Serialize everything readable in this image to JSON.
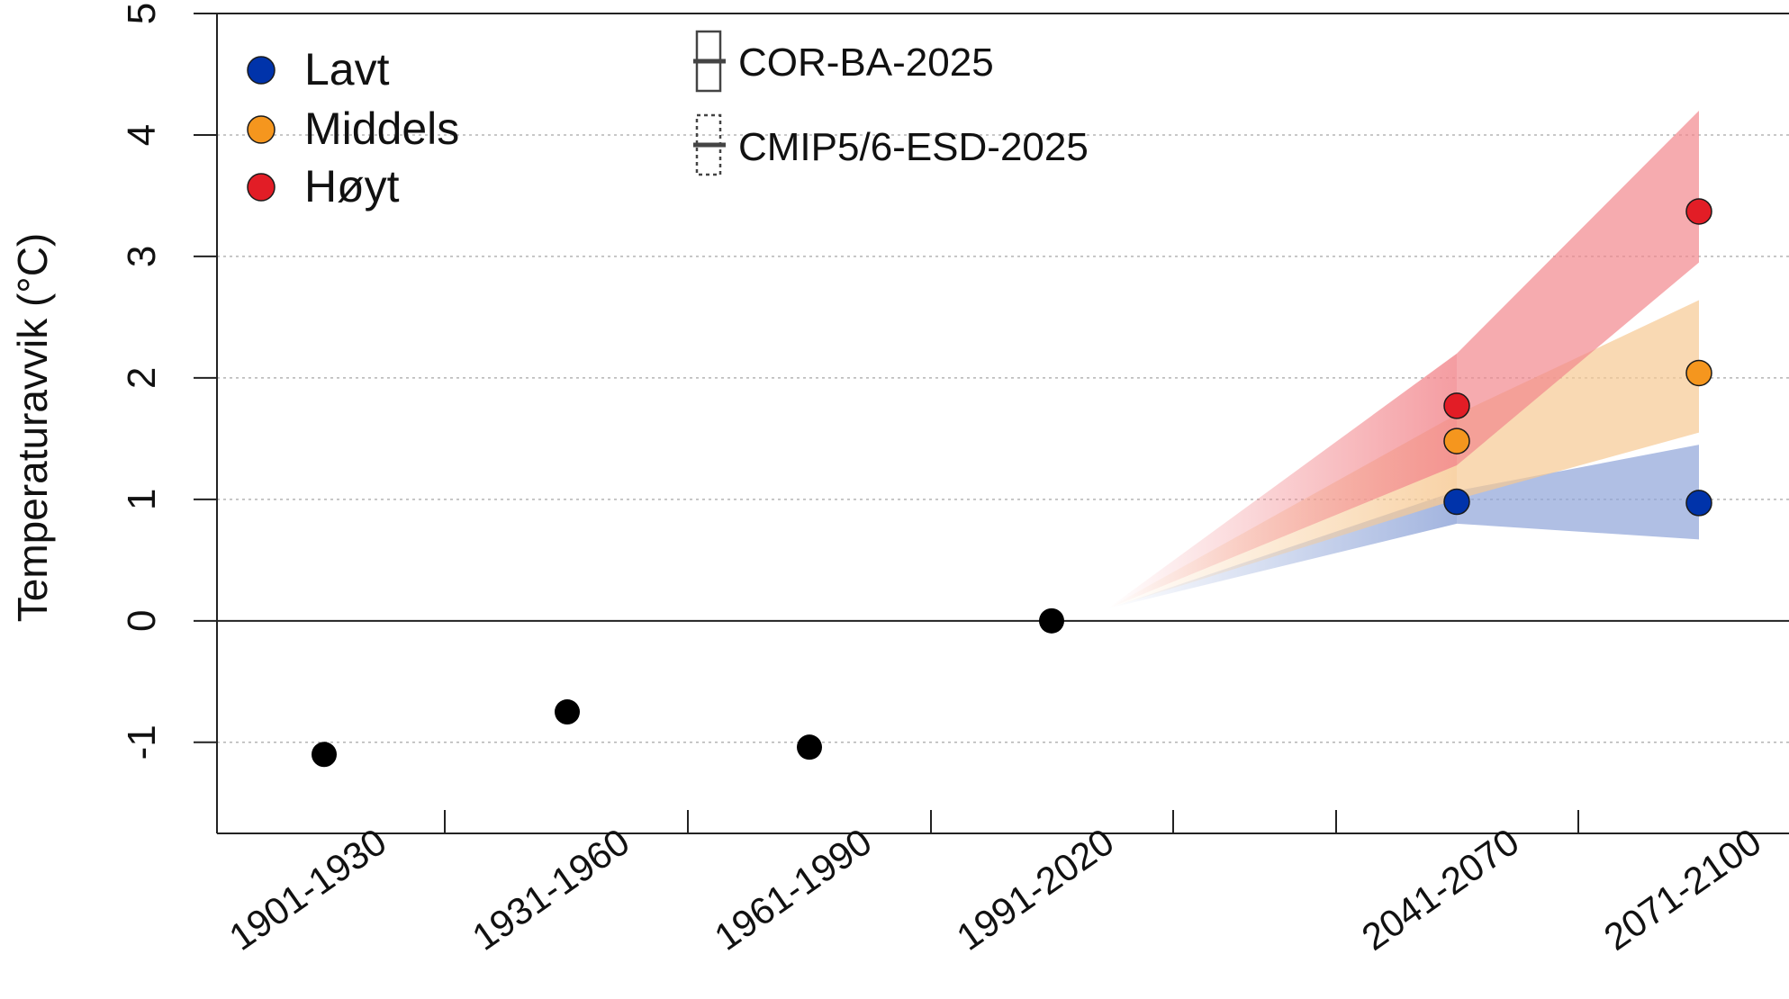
{
  "chart_data": {
    "type": "scatter",
    "ylabel": "Temperaturavvik (°C)",
    "xlabel": "",
    "title": "",
    "ylim": [
      -1.75,
      5
    ],
    "yticks": [
      "5",
      "4",
      "3",
      "2",
      "1",
      "0",
      "-1"
    ],
    "ytick_values": [
      5,
      4,
      3,
      2,
      1,
      0,
      -1
    ],
    "grid": "horizontal dotted",
    "zero_line": true,
    "categories": [
      "1901-1930",
      "1931-1960",
      "1961-1990",
      "1991-2020",
      "",
      "2041-2070",
      "2071-2100"
    ],
    "observed": {
      "color": "#000000",
      "points": [
        {
          "period": "1901-1930",
          "value": -1.1
        },
        {
          "period": "1931-1960",
          "value": -0.75
        },
        {
          "period": "1961-1990",
          "value": -1.04
        },
        {
          "period": "1991-2020",
          "value": 0.0
        }
      ]
    },
    "series": [
      {
        "name": "Lavt",
        "color": "#0033aa",
        "band_color": "#8ea4d8",
        "points": [
          {
            "period": "2041-2070",
            "value": 0.98,
            "low": 0.8,
            "high": 1.07
          },
          {
            "period": "2071-2100",
            "value": 0.97,
            "low": 0.67,
            "high": 1.45
          }
        ]
      },
      {
        "name": "Middels",
        "color": "#f5961e",
        "band_color": "#f7c993",
        "points": [
          {
            "period": "2041-2070",
            "value": 1.48,
            "low": 1.0,
            "high": 1.7
          },
          {
            "period": "2071-2100",
            "value": 2.04,
            "low": 1.55,
            "high": 2.64
          }
        ]
      },
      {
        "name": "Høyt",
        "color": "#e21d26",
        "band_color": "#f2878d",
        "points": [
          {
            "period": "2041-2070",
            "value": 1.77,
            "low": 1.28,
            "high": 2.2
          },
          {
            "period": "2071-2100",
            "value": 3.37,
            "low": 2.95,
            "high": 4.2
          }
        ]
      }
    ],
    "legend": {
      "position": "top-left",
      "items": [
        "Lavt",
        "Middels",
        "Høyt"
      ],
      "box_items": [
        "COR-BA-2025",
        "CMIP5/6-ESD-2025"
      ]
    }
  }
}
